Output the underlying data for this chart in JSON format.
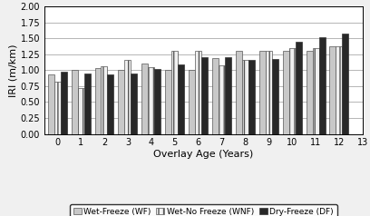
{
  "title": "",
  "xlabel": "Overlay Age (Years)",
  "ylabel": "IRI (m/km)",
  "ages": [
    0,
    1,
    2,
    3,
    4,
    5,
    6,
    7,
    8,
    9,
    10,
    11,
    12
  ],
  "x_ticks": [
    0,
    1,
    2,
    3,
    4,
    5,
    6,
    7,
    8,
    9,
    10,
    11,
    12,
    13
  ],
  "WF": [
    0.94,
    1.0,
    1.03,
    1.0,
    1.1,
    1.01,
    1.01,
    1.19,
    1.3,
    1.3,
    1.3,
    1.31,
    1.37
  ],
  "WNF": [
    0.82,
    0.72,
    1.06,
    1.16,
    1.05,
    1.3,
    1.3,
    1.07,
    1.16,
    1.3,
    1.35,
    1.35,
    1.37
  ],
  "DF": [
    0.98,
    0.95,
    0.93,
    0.95,
    1.02,
    1.09,
    1.21,
    1.21,
    1.16,
    1.18,
    1.44,
    1.52,
    1.57
  ],
  "ylim": [
    0.0,
    2.0
  ],
  "yticks": [
    0.0,
    0.25,
    0.5,
    0.75,
    1.0,
    1.25,
    1.5,
    1.75,
    2.0
  ],
  "colors": {
    "WF": "#c8c8c8",
    "WNF": "#f0f0f0",
    "DF": "#282828"
  },
  "hatches": {
    "WF": "",
    "WNF": "|||",
    "DF": ""
  },
  "legend_labels": [
    "Wet-Freeze (WF)",
    "Wet-No Freeze (WNF)",
    "Dry-Freeze (DF)"
  ],
  "bar_width": 0.27,
  "background_color": "#f0f0f0",
  "plot_bg": "#ffffff",
  "grid_color": "#999999"
}
